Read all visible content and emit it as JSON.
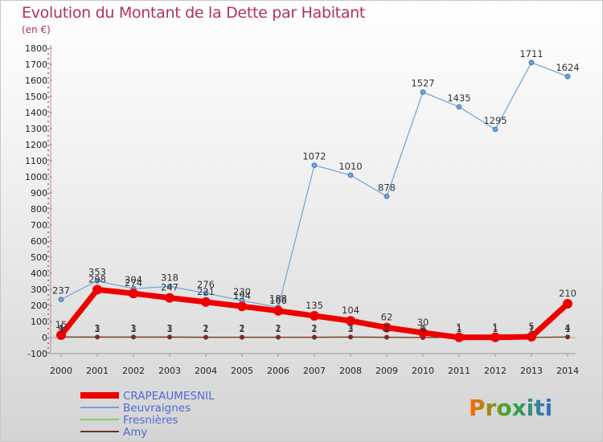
{
  "chart_data": {
    "type": "line",
    "title": "Evolution du Montant de la Dette par Habitant",
    "subtitle": "(en €)",
    "x": [
      "2000",
      "2001",
      "2002",
      "2003",
      "2004",
      "2005",
      "2006",
      "2007",
      "2008",
      "2009",
      "2010",
      "2011",
      "2012",
      "2013",
      "2014"
    ],
    "ylim": [
      -100,
      1800
    ],
    "yticks": [
      -100,
      0,
      100,
      200,
      300,
      400,
      500,
      600,
      700,
      800,
      900,
      1000,
      1100,
      1200,
      1300,
      1400,
      1500,
      1600,
      1700,
      1800
    ],
    "grid": false,
    "legend": "bottom-left",
    "series": [
      {
        "name": "CRAPEAUMESNIL",
        "color": "#ee0000",
        "values": [
          15,
          298,
          274,
          247,
          221,
          194,
          166,
          135,
          104,
          62,
          30,
          1,
          1,
          5,
          210
        ]
      },
      {
        "name": "Beuvraignes",
        "color": "#6fa3d8",
        "values": [
          237,
          353,
          304,
          318,
          276,
          230,
          188,
          1072,
          1010,
          878,
          1527,
          1435,
          1295,
          1711,
          1624
        ]
      },
      {
        "name": "Fresnières",
        "color": "#88cc66",
        "values": [
          1,
          1,
          1,
          1,
          1,
          1,
          1,
          1,
          1,
          1,
          1,
          1,
          1,
          1,
          1
        ]
      },
      {
        "name": "Amy",
        "color": "#7a2a2a",
        "values": [
          4,
          3,
          3,
          3,
          2,
          2,
          2,
          2,
          3,
          2,
          0,
          1,
          1,
          1,
          4
        ]
      }
    ]
  },
  "brand": {
    "logo_text": "Proxiti"
  }
}
